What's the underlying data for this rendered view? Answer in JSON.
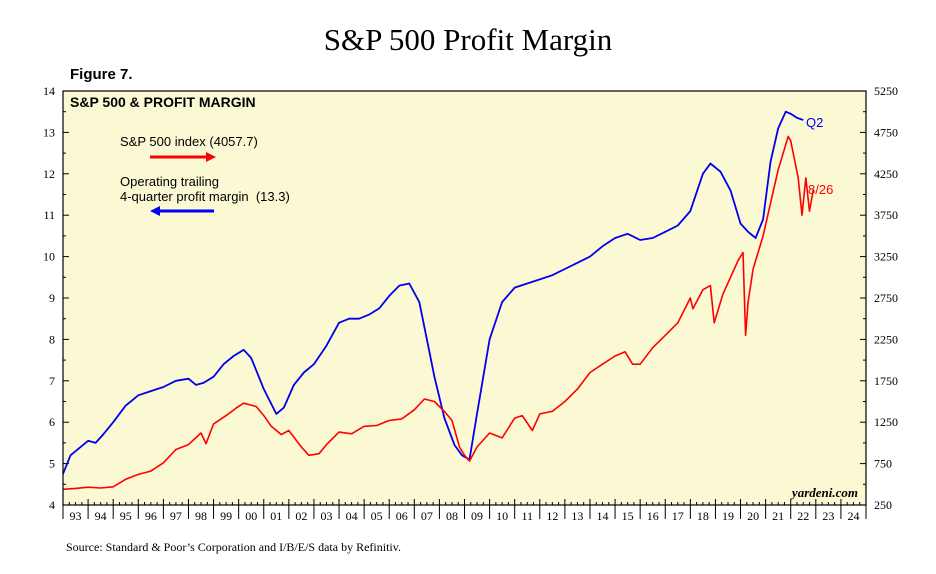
{
  "page": {
    "title": "S&P 500 Profit Margin",
    "figure_label": "Figure 7.",
    "source": "Source: Standard & Poor’s Corporation and I/B/E/S data by Refinitiv."
  },
  "colors": {
    "panel_bg": "#fbf8d4",
    "sp500": "#ff0000",
    "margin": "#0000ee",
    "axis": "#000000"
  },
  "chart_data": {
    "type": "line",
    "title": "S&P 500 & PROFIT MARGIN",
    "watermark": "yardeni.com",
    "left_axis": {
      "ylim": [
        4,
        14
      ],
      "ticks": [
        "4",
        "5",
        "6",
        "7",
        "8",
        "9",
        "10",
        "11",
        "12",
        "13",
        "14"
      ]
    },
    "right_axis": {
      "ylim": [
        250,
        5250
      ],
      "ticks": [
        "250",
        "750",
        "1250",
        "1750",
        "2250",
        "2750",
        "3250",
        "3750",
        "4250",
        "4750",
        "5250"
      ]
    },
    "x_axis": {
      "xlim": [
        1993,
        2025
      ],
      "ticks": [
        "93",
        "94",
        "95",
        "96",
        "97",
        "98",
        "99",
        "00",
        "01",
        "02",
        "03",
        "04",
        "05",
        "06",
        "07",
        "08",
        "09",
        "10",
        "11",
        "12",
        "13",
        "14",
        "15",
        "16",
        "17",
        "18",
        "19",
        "20",
        "21",
        "22",
        "23",
        "24"
      ]
    },
    "legend": [
      {
        "label": "S&P 500 index (4057.7)",
        "arrow": "right",
        "color": "#ff0000"
      },
      {
        "label": "Operating trailing\n4-quarter profit margin  (13.3)",
        "arrow": "left",
        "color": "#0000ee"
      }
    ],
    "annotations": [
      {
        "text": "Q2",
        "series": "margin",
        "color": "#0000ee"
      },
      {
        "text": "8/26",
        "series": "sp500",
        "color": "#ff0000"
      }
    ],
    "series": [
      {
        "name": "Operating trailing 4-quarter profit margin",
        "axis": "left",
        "color": "#0000ee",
        "x": [
          1993.0,
          1993.3,
          1993.6,
          1994.0,
          1994.3,
          1994.6,
          1995.0,
          1995.5,
          1996.0,
          1996.5,
          1997.0,
          1997.5,
          1998.0,
          1998.3,
          1998.6,
          1999.0,
          1999.4,
          1999.8,
          2000.2,
          2000.5,
          2001.0,
          2001.5,
          2001.8,
          2002.2,
          2002.6,
          2003.0,
          2003.5,
          2004.0,
          2004.4,
          2004.8,
          2005.2,
          2005.6,
          2006.0,
          2006.4,
          2006.8,
          2007.2,
          2007.5,
          2007.8,
          2008.2,
          2008.6,
          2008.9,
          2009.2,
          2009.5,
          2009.75,
          2010.0,
          2010.5,
          2011.0,
          2011.5,
          2012.0,
          2012.5,
          2013.0,
          2013.5,
          2014.0,
          2014.5,
          2015.0,
          2015.5,
          2016.0,
          2016.5,
          2017.0,
          2017.5,
          2018.0,
          2018.5,
          2018.8,
          2019.2,
          2019.6,
          2020.0,
          2020.3,
          2020.6,
          2020.9,
          2021.2,
          2021.5,
          2021.8,
          2022.0,
          2022.25,
          2022.5
        ],
        "values": [
          4.75,
          5.2,
          5.35,
          5.55,
          5.5,
          5.7,
          6.0,
          6.4,
          6.65,
          6.75,
          6.85,
          7.0,
          7.05,
          6.9,
          6.95,
          7.1,
          7.4,
          7.6,
          7.75,
          7.55,
          6.8,
          6.2,
          6.35,
          6.9,
          7.2,
          7.4,
          7.85,
          8.4,
          8.5,
          8.5,
          8.6,
          8.75,
          9.05,
          9.3,
          9.35,
          8.9,
          8.0,
          7.1,
          6.1,
          5.45,
          5.2,
          5.1,
          6.2,
          7.1,
          8.0,
          8.9,
          9.25,
          9.35,
          9.45,
          9.55,
          9.7,
          9.85,
          10.0,
          10.25,
          10.45,
          10.55,
          10.4,
          10.45,
          10.6,
          10.75,
          11.1,
          12.0,
          12.25,
          12.05,
          11.6,
          10.8,
          10.6,
          10.45,
          10.9,
          12.3,
          13.1,
          13.5,
          13.45,
          13.35,
          13.3
        ]
      },
      {
        "name": "S&P 500 index",
        "axis": "right",
        "color": "#ff0000",
        "x": [
          1993.0,
          1993.5,
          1994.0,
          1994.5,
          1995.0,
          1995.5,
          1996.0,
          1996.5,
          1997.0,
          1997.5,
          1998.0,
          1998.5,
          1998.7,
          1999.0,
          1999.5,
          1999.9,
          2000.2,
          2000.7,
          2001.0,
          2001.3,
          2001.7,
          2002.0,
          2002.5,
          2002.8,
          2003.2,
          2003.5,
          2004.0,
          2004.5,
          2005.0,
          2005.5,
          2006.0,
          2006.5,
          2007.0,
          2007.4,
          2007.8,
          2008.2,
          2008.5,
          2008.8,
          2009.0,
          2009.2,
          2009.5,
          2010.0,
          2010.5,
          2011.0,
          2011.3,
          2011.7,
          2012.0,
          2012.5,
          2013.0,
          2013.5,
          2014.0,
          2014.5,
          2015.0,
          2015.4,
          2015.7,
          2016.0,
          2016.5,
          2017.0,
          2017.5,
          2018.0,
          2018.1,
          2018.5,
          2018.8,
          2018.95,
          2019.3,
          2019.6,
          2019.9,
          2020.1,
          2020.2,
          2020.3,
          2020.5,
          2020.9,
          2021.2,
          2021.5,
          2021.9,
          2022.0,
          2022.3,
          2022.45,
          2022.6,
          2022.75,
          2022.9
        ],
        "values": [
          440,
          450,
          465,
          455,
          470,
          560,
          620,
          660,
          760,
          920,
          980,
          1120,
          990,
          1230,
          1330,
          1420,
          1480,
          1440,
          1330,
          1200,
          1100,
          1150,
          950,
          850,
          870,
          980,
          1130,
          1110,
          1200,
          1210,
          1270,
          1290,
          1400,
          1530,
          1500,
          1380,
          1270,
          950,
          850,
          780,
          950,
          1120,
          1060,
          1300,
          1330,
          1150,
          1350,
          1380,
          1500,
          1650,
          1850,
          1950,
          2050,
          2100,
          1950,
          1950,
          2150,
          2300,
          2450,
          2750,
          2620,
          2850,
          2900,
          2450,
          2800,
          3000,
          3200,
          3300,
          2300,
          2700,
          3100,
          3500,
          3900,
          4300,
          4700,
          4650,
          4200,
          3750,
          4200,
          3800,
          4057.7
        ]
      }
    ]
  }
}
